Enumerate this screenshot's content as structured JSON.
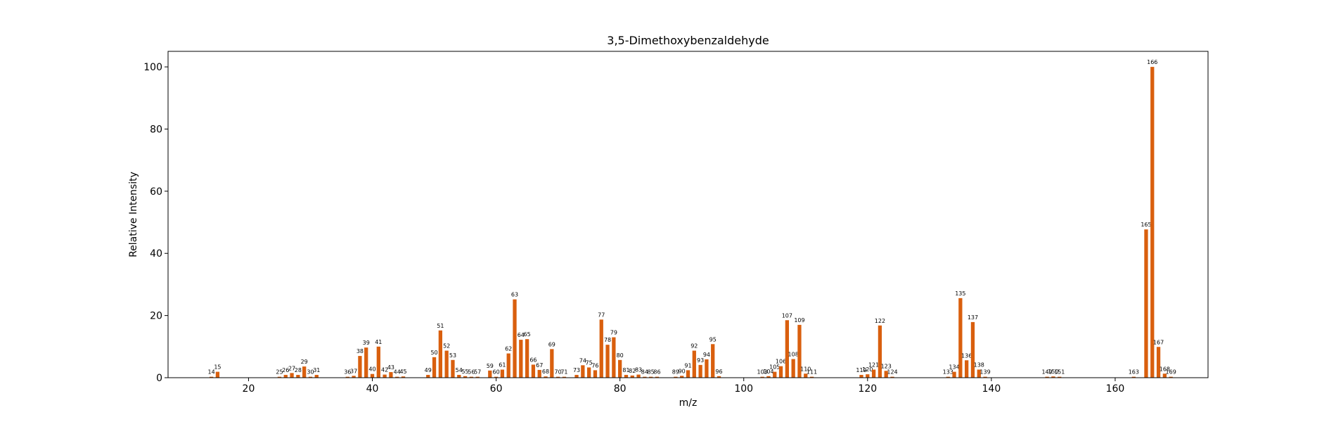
{
  "chart_data": {
    "type": "bar",
    "title": "3,5-Dimethoxybenzaldehyde",
    "xlabel": "m/z",
    "ylabel": "Relative Intensity",
    "xlim": [
      7,
      175
    ],
    "ylim": [
      0,
      105
    ],
    "xticks": [
      20,
      40,
      60,
      80,
      100,
      120,
      140,
      160
    ],
    "yticks": [
      0,
      20,
      40,
      60,
      80,
      100
    ],
    "bar_color": "#d95f0e",
    "grid": false,
    "series": [
      {
        "x": [
          14,
          15,
          25,
          26,
          27,
          28,
          29,
          30,
          31,
          36,
          37,
          38,
          39,
          40,
          41,
          42,
          43,
          44,
          45,
          49,
          50,
          51,
          52,
          53,
          54,
          55,
          56,
          57,
          59,
          60,
          61,
          62,
          63,
          64,
          65,
          66,
          67,
          68,
          69,
          70,
          71,
          73,
          74,
          75,
          76,
          77,
          78,
          79,
          80,
          81,
          82,
          83,
          84,
          85,
          86,
          89,
          90,
          91,
          92,
          93,
          94,
          95,
          96,
          103,
          104,
          105,
          106,
          107,
          108,
          109,
          110,
          111,
          119,
          120,
          121,
          122,
          123,
          124,
          133,
          134,
          135,
          136,
          137,
          138,
          139,
          149,
          150,
          151,
          163,
          165,
          166,
          167,
          168,
          169
        ],
        "values": [
          0.3,
          1.9,
          0.3,
          0.9,
          1.5,
          0.9,
          3.6,
          0.3,
          0.9,
          0.3,
          0.6,
          7.0,
          9.7,
          1.2,
          10.0,
          1.0,
          1.8,
          0.3,
          0.4,
          0.9,
          6.6,
          15.2,
          8.7,
          5.7,
          0.9,
          0.5,
          0.3,
          0.3,
          2.3,
          0.3,
          2.6,
          7.8,
          25.2,
          12.2,
          12.4,
          4.2,
          2.5,
          0.4,
          9.2,
          0.3,
          0.3,
          0.9,
          4.0,
          3.3,
          2.4,
          18.7,
          10.6,
          13.0,
          5.7,
          0.9,
          0.7,
          1.0,
          0.3,
          0.3,
          0.3,
          0.3,
          0.6,
          2.4,
          8.7,
          4.1,
          5.9,
          10.8,
          0.5,
          0.3,
          0.5,
          1.9,
          3.7,
          18.5,
          6.0,
          17.0,
          1.3,
          0.3,
          0.9,
          1.1,
          2.6,
          16.8,
          2.2,
          0.3,
          0.3,
          1.9,
          25.6,
          5.6,
          17.9,
          2.6,
          0.3,
          0.3,
          0.4,
          0.3,
          0.3,
          47.7,
          100.0,
          9.9,
          1.3,
          0.3
        ],
        "labels": [
          "14",
          "15",
          "25",
          "26",
          "27",
          "28",
          "29",
          "30",
          "31",
          "36",
          "37",
          "38",
          "39",
          "40",
          "41",
          "42",
          "43",
          "44",
          "45",
          "49",
          "50",
          "51",
          "52",
          "53",
          "54",
          "55",
          "56",
          "57",
          "59",
          "60",
          "61",
          "62",
          "63",
          "64",
          "65",
          "66",
          "67",
          "68",
          "69",
          "70",
          "71",
          "73",
          "74",
          "75",
          "76",
          "77",
          "78",
          "79",
          "80",
          "81",
          "82",
          "83",
          "84",
          "85",
          "86",
          "89",
          "90",
          "91",
          "92",
          "93",
          "94",
          "95",
          "96",
          "103",
          "104",
          "105",
          "106",
          "107",
          "108",
          "109",
          "110",
          "111",
          "119",
          "120",
          "121",
          "122",
          "123",
          "124",
          "133",
          "134",
          "135",
          "136",
          "137",
          "138",
          "139",
          "149",
          "150",
          "151",
          "163",
          "165",
          "166",
          "167",
          "168",
          "169"
        ]
      }
    ]
  }
}
